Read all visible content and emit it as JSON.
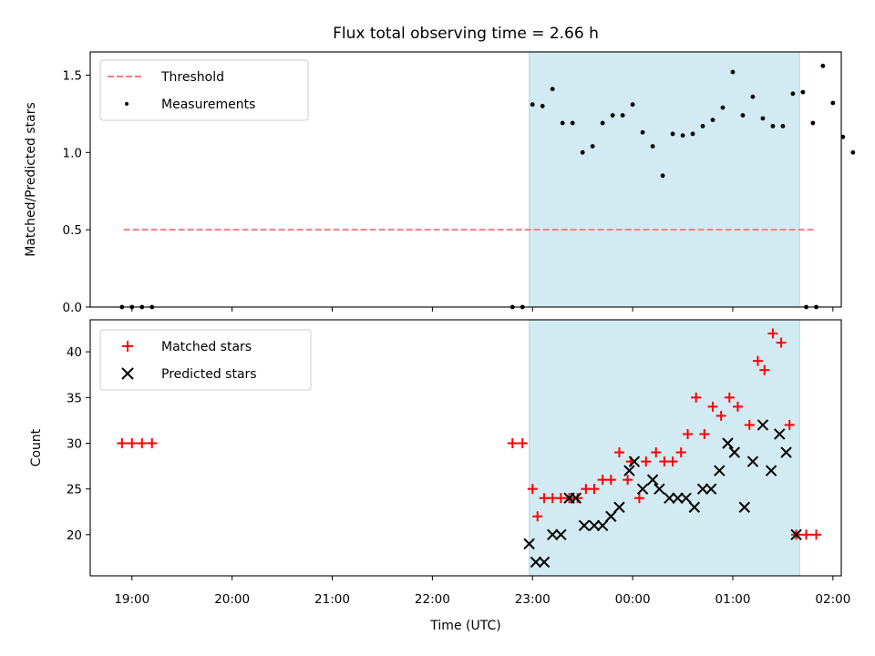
{
  "title": "Flux total observing time = 2.66 h",
  "xlabel": "Time (UTC)",
  "colors": {
    "threshold": "#f08080",
    "measurement": "#000000",
    "matched": "#ff0000",
    "predicted": "#000000",
    "shade": "#add8e6"
  },
  "chart_data": [
    {
      "type": "scatter",
      "name": "ratio-panel",
      "ylabel": "Matched/Predicted stars",
      "xlim": [
        "18:35",
        "02:05"
      ],
      "ylim": [
        0,
        1.65
      ],
      "yticks": [
        0.0,
        0.5,
        1.0,
        1.5
      ],
      "ytick_labels": [
        "0.0",
        "0.5",
        "1.0",
        "1.5"
      ],
      "shaded_interval": [
        "22:58",
        "01:40"
      ],
      "legend": {
        "placement": "top-left",
        "entries": [
          "Threshold",
          "Measurements"
        ]
      },
      "threshold": {
        "name": "Threshold",
        "y": 0.5,
        "x_range": [
          "18:55",
          "01:50"
        ],
        "style": "dashed"
      },
      "measurements": {
        "name": "Measurements",
        "points": [
          [
            "18:54",
            0.0
          ],
          [
            "19:00",
            0.0
          ],
          [
            "19:06",
            0.0
          ],
          [
            "19:12",
            0.0
          ],
          [
            "22:48",
            0.0
          ],
          [
            "22:54",
            0.0
          ],
          [
            "23:00",
            1.31
          ],
          [
            "23:06",
            1.3
          ],
          [
            "23:12",
            1.41
          ],
          [
            "23:18",
            1.19
          ],
          [
            "23:24",
            1.19
          ],
          [
            "23:30",
            1.0
          ],
          [
            "23:36",
            1.04
          ],
          [
            "23:42",
            1.19
          ],
          [
            "23:48",
            1.24
          ],
          [
            "23:54",
            1.24
          ],
          [
            "00:00",
            1.31
          ],
          [
            "00:06",
            1.13
          ],
          [
            "00:12",
            1.04
          ],
          [
            "00:18",
            0.85
          ],
          [
            "00:24",
            1.12
          ],
          [
            "00:30",
            1.11
          ],
          [
            "00:36",
            1.12
          ],
          [
            "00:42",
            1.17
          ],
          [
            "00:48",
            1.21
          ],
          [
            "00:54",
            1.29
          ],
          [
            "01:00",
            1.52
          ],
          [
            "01:06",
            1.24
          ],
          [
            "01:12",
            1.36
          ],
          [
            "01:18",
            1.22
          ],
          [
            "01:24",
            1.17
          ],
          [
            "01:30",
            1.17
          ],
          [
            "01:36",
            1.38
          ],
          [
            "01:42",
            1.39
          ],
          [
            "01:48",
            1.19
          ],
          [
            "01:54",
            1.56
          ],
          [
            "02:00",
            1.32
          ],
          [
            "02:06",
            1.1
          ],
          [
            "02:12",
            1.0
          ],
          [
            "01:44",
            0.0
          ],
          [
            "01:50",
            0.0
          ]
        ]
      }
    },
    {
      "type": "scatter",
      "name": "count-panel",
      "ylabel": "Count",
      "xlim": [
        "18:35",
        "02:05"
      ],
      "ylim": [
        15.5,
        43.5
      ],
      "yticks": [
        20,
        25,
        30,
        35,
        40
      ],
      "ytick_labels": [
        "20",
        "25",
        "30",
        "35",
        "40"
      ],
      "xtick_labels": [
        "19:00",
        "20:00",
        "21:00",
        "22:00",
        "23:00",
        "00:00",
        "01:00",
        "02:00"
      ],
      "shaded_interval": [
        "22:58",
        "01:40"
      ],
      "legend": {
        "placement": "top-left",
        "entries": [
          "Matched stars",
          "Predicted stars"
        ]
      },
      "series": [
        {
          "name": "Matched stars",
          "marker": "+",
          "points": [
            [
              "18:54",
              30
            ],
            [
              "19:00",
              30
            ],
            [
              "19:06",
              30
            ],
            [
              "19:12",
              30
            ],
            [
              "22:48",
              30
            ],
            [
              "22:54",
              30
            ],
            [
              "23:00",
              25
            ],
            [
              "23:03",
              22
            ],
            [
              "23:07",
              24
            ],
            [
              "23:12",
              24
            ],
            [
              "23:17",
              24
            ],
            [
              "23:22",
              24
            ],
            [
              "23:27",
              24
            ],
            [
              "23:32",
              25
            ],
            [
              "23:37",
              25
            ],
            [
              "23:42",
              26
            ],
            [
              "23:47",
              26
            ],
            [
              "23:52",
              29
            ],
            [
              "23:57",
              26
            ],
            [
              "23:59",
              28
            ],
            [
              "00:04",
              24
            ],
            [
              "00:08",
              28
            ],
            [
              "00:14",
              29
            ],
            [
              "00:19",
              28
            ],
            [
              "00:24",
              28
            ],
            [
              "00:29",
              29
            ],
            [
              "00:33",
              31
            ],
            [
              "00:38",
              35
            ],
            [
              "00:43",
              31
            ],
            [
              "00:48",
              34
            ],
            [
              "00:53",
              33
            ],
            [
              "00:58",
              35
            ],
            [
              "01:03",
              34
            ],
            [
              "01:10",
              32
            ],
            [
              "01:15",
              39
            ],
            [
              "01:19",
              38
            ],
            [
              "01:24",
              42
            ],
            [
              "01:29",
              41
            ],
            [
              "01:34",
              32
            ],
            [
              "01:38",
              20
            ],
            [
              "01:44",
              20
            ],
            [
              "01:50",
              20
            ]
          ]
        },
        {
          "name": "Predicted stars",
          "marker": "x",
          "points": [
            [
              "22:58",
              19
            ],
            [
              "23:02",
              17
            ],
            [
              "23:07",
              17
            ],
            [
              "23:12",
              20
            ],
            [
              "23:17",
              20
            ],
            [
              "23:22",
              24
            ],
            [
              "23:26",
              24
            ],
            [
              "23:31",
              21
            ],
            [
              "23:37",
              21
            ],
            [
              "23:42",
              21
            ],
            [
              "23:47",
              22
            ],
            [
              "23:52",
              23
            ],
            [
              "23:58",
              27
            ],
            [
              "00:01",
              28
            ],
            [
              "00:06",
              25
            ],
            [
              "00:12",
              26
            ],
            [
              "00:16",
              25
            ],
            [
              "00:22",
              24
            ],
            [
              "00:27",
              24
            ],
            [
              "00:32",
              24
            ],
            [
              "00:37",
              23
            ],
            [
              "00:42",
              25
            ],
            [
              "00:47",
              25
            ],
            [
              "00:52",
              27
            ],
            [
              "00:57",
              30
            ],
            [
              "01:01",
              29
            ],
            [
              "01:07",
              23
            ],
            [
              "01:12",
              28
            ],
            [
              "01:18",
              32
            ],
            [
              "01:23",
              27
            ],
            [
              "01:28",
              31
            ],
            [
              "01:32",
              29
            ],
            [
              "01:38",
              20
            ]
          ]
        }
      ]
    }
  ]
}
